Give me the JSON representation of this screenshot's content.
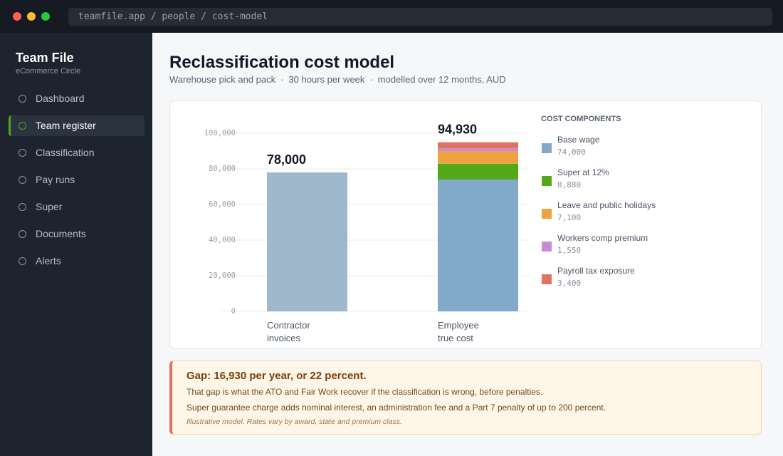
{
  "browser": {
    "url": "teamfile.app / people / cost-model"
  },
  "sidebar": {
    "brand": "Team File",
    "org": "eCommerce Circle",
    "nav": [
      "Dashboard",
      "Team register",
      "Classification",
      "Pay runs",
      "Super",
      "Documents",
      "Alerts"
    ],
    "active": 1
  },
  "header": {
    "title": "Reclassification cost model",
    "subtitle": [
      "Warehouse pick and pack",
      "30 hours per week",
      "modelled over 12 months, AUD"
    ]
  },
  "chart_data": {
    "type": "stacked_bar",
    "categories": [
      "Contractor invoices",
      "Employee true cost"
    ],
    "ylim": [
      0,
      100000
    ],
    "yticks": [
      0,
      {
        "value": 20000,
        "label": "20,000"
      },
      {
        "value": 40000,
        "label": "40,000"
      },
      {
        "value": 60000,
        "label": "60,000"
      },
      {
        "value": 80000,
        "label": "80,000"
      },
      {
        "value": 100000,
        "label": "100,000"
      }
    ],
    "grid": true,
    "legend_title": "COST COMPONENTS",
    "legend": "right",
    "totals": {
      "values": [
        78000,
        94930
      ],
      "value_labels": [
        "78,000",
        "94,930"
      ],
      "color": "#9fb8cc"
    },
    "series": [
      {
        "name": "Base wage",
        "color": "#82a9c9",
        "values": [
          null,
          74000
        ],
        "value_labels": [
          null,
          "74,000"
        ]
      },
      {
        "name": "Super at 12%",
        "color": "#52a818",
        "values": [
          null,
          8880
        ],
        "value_labels": [
          null,
          "8,880"
        ]
      },
      {
        "name": "Leave and public holidays",
        "color": "#eea23f",
        "values": [
          null,
          7100
        ],
        "value_labels": [
          null,
          "7,100"
        ]
      },
      {
        "name": "Workers comp premium",
        "color": "#c98ad6",
        "values": [
          null,
          1550
        ],
        "value_labels": [
          null,
          "1,550"
        ]
      },
      {
        "name": "Payroll tax exposure",
        "color": "#e0735f",
        "values": [
          null,
          3400
        ],
        "value_labels": [
          null,
          "3,400"
        ]
      }
    ]
  },
  "alert": {
    "title": "Gap: 16,930 per year, or 22 percent.",
    "lines": [
      "That gap is what the ATO and Fair Work recover if the classification is wrong, before penalties.",
      "Super guarantee charge adds nominal interest, an administration fee and a Part 7 penalty of up to 200 percent."
    ],
    "note": "Illustrative model. Rates vary by award, state and premium class."
  }
}
